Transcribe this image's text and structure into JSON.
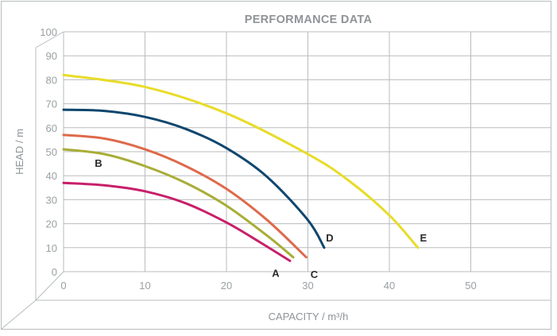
{
  "chart_data": {
    "type": "line",
    "title": "PERFORMANCE DATA",
    "xlabel": "CAPACITY / m³/h",
    "ylabel": "HEAD / m",
    "xlim": [
      0,
      60
    ],
    "ylim": [
      0,
      100
    ],
    "x_ticks": [
      "0",
      "10",
      "20",
      "30",
      "40",
      "50"
    ],
    "y_ticks": [
      "0",
      "10",
      "20",
      "30",
      "40",
      "50",
      "60",
      "70",
      "80",
      "90",
      "100"
    ],
    "grid": true,
    "series": [
      {
        "name": "A",
        "color": "#c81f6a",
        "x": [
          0,
          5,
          10,
          15,
          20,
          24,
          27.8
        ],
        "y": [
          37,
          36,
          33.5,
          28.5,
          20.5,
          12.5,
          4.5
        ]
      },
      {
        "name": "B",
        "color": "#a8ad36",
        "x": [
          0,
          5,
          10,
          15,
          20,
          25,
          28.2
        ],
        "y": [
          51,
          49,
          44,
          37,
          27.5,
          15,
          6
        ]
      },
      {
        "name": "C",
        "color": "#de6a4b",
        "x": [
          0,
          5,
          10,
          15,
          20,
          25,
          29.8
        ],
        "y": [
          57,
          55.5,
          51,
          44,
          34.5,
          21.5,
          6
        ]
      },
      {
        "name": "D",
        "color": "#0f466e",
        "x": [
          0,
          5,
          10,
          15,
          20,
          25,
          30,
          32
        ],
        "y": [
          67.5,
          67,
          64.5,
          59.5,
          51.5,
          39.5,
          21.5,
          10
        ]
      },
      {
        "name": "E",
        "color": "#e8dc2a",
        "x": [
          0,
          10,
          20,
          30,
          35,
          40,
          43.5
        ],
        "y": [
          82,
          77,
          66,
          49,
          38,
          23.5,
          10
        ]
      }
    ]
  }
}
